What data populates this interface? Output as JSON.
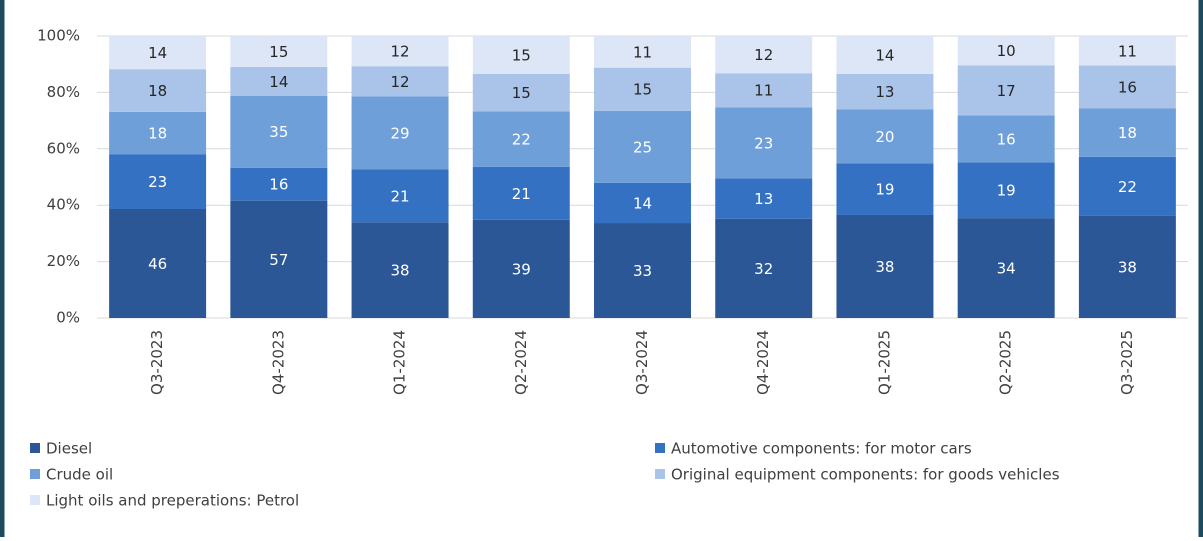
{
  "chart_data": {
    "type": "stacked_percent_bar",
    "categories": [
      "Q3-2023",
      "Q4-2023",
      "Q1-2024",
      "Q2-2024",
      "Q3-2024",
      "Q4-2024",
      "Q1-2025",
      "Q2-2025",
      "Q3-2025"
    ],
    "series": [
      {
        "name": "Diesel",
        "color": "#2b5797",
        "label_color": "#ffffff",
        "values": [
          46,
          57,
          38,
          39,
          33,
          32,
          38,
          34,
          38
        ]
      },
      {
        "name": "Automotive components: for motor cars",
        "color": "#3571c2",
        "label_color": "#ffffff",
        "values": [
          23,
          16,
          21,
          21,
          14,
          13,
          19,
          19,
          22
        ]
      },
      {
        "name": "Crude oil",
        "color": "#6f9fd9",
        "label_color": "#ffffff",
        "values": [
          18,
          35,
          29,
          22,
          25,
          23,
          20,
          16,
          18
        ]
      },
      {
        "name": "Original equipment components: for goods vehicles",
        "color": "#aac4e9",
        "label_color": "#262626",
        "values": [
          18,
          14,
          12,
          15,
          15,
          11,
          13,
          17,
          16
        ]
      },
      {
        "name": "Light oils and preperations: Petrol",
        "color": "#dde6f7",
        "label_color": "#262626",
        "values": [
          14,
          15,
          12,
          15,
          11,
          12,
          14,
          10,
          11
        ]
      }
    ],
    "ylim": [
      0,
      100
    ],
    "yticks": [
      {
        "value": 0,
        "label": "0%"
      },
      {
        "value": 20,
        "label": "20%"
      },
      {
        "value": 40,
        "label": "40%"
      },
      {
        "value": 60,
        "label": "60%"
      },
      {
        "value": 80,
        "label": "80%"
      },
      {
        "value": 100,
        "label": "100%"
      }
    ],
    "grid": true
  }
}
